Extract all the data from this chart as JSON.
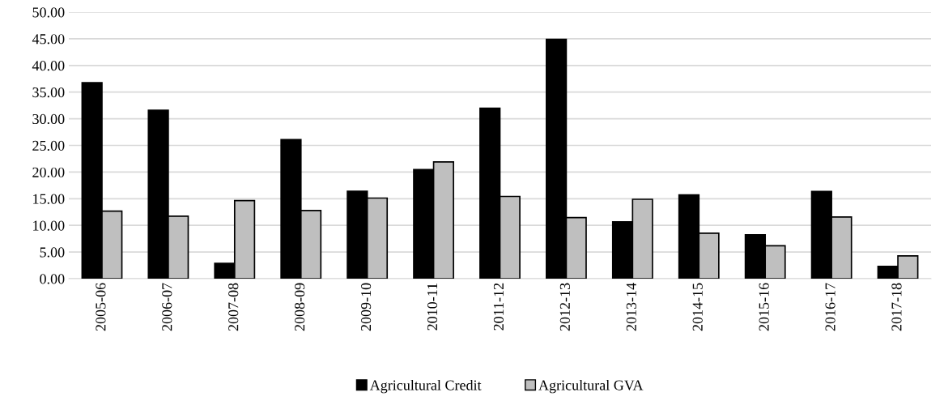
{
  "chart_data": {
    "type": "bar",
    "categories": [
      "2005-06",
      "2006-07",
      "2007-08",
      "2008-09",
      "2009-10",
      "2010-11",
      "2011-12",
      "2012-13",
      "2013-14",
      "2014-15",
      "2015-16",
      "2016-17",
      "2017-18"
    ],
    "series": [
      {
        "name": "Agricultural Credit",
        "color": "#000000",
        "values": [
          36.75,
          31.6,
          2.87,
          26.1,
          16.4,
          20.45,
          31.97,
          44.9,
          10.68,
          15.7,
          8.24,
          16.37,
          2.31
        ]
      },
      {
        "name": "Agricultural GVA",
        "color": "#bfbfbf",
        "values": [
          12.66,
          11.72,
          14.65,
          12.78,
          15.12,
          21.9,
          15.42,
          11.45,
          14.89,
          8.54,
          6.17,
          11.57,
          4.27
        ]
      }
    ],
    "ylim": [
      0,
      50
    ],
    "yticks": [
      {
        "value": 0,
        "label": "0.00"
      },
      {
        "value": 5,
        "label": "5.00"
      },
      {
        "value": 10,
        "label": "10.00"
      },
      {
        "value": 15,
        "label": "15.00"
      },
      {
        "value": 20,
        "label": "20.00"
      },
      {
        "value": 25,
        "label": "25.00"
      },
      {
        "value": 30,
        "label": "30.00"
      },
      {
        "value": 35,
        "label": "35.00"
      },
      {
        "value": 40,
        "label": "40.00"
      },
      {
        "value": 45,
        "label": "45.00"
      },
      {
        "value": 50,
        "label": "50.00"
      }
    ],
    "grid": "y",
    "legend": "bottom"
  }
}
